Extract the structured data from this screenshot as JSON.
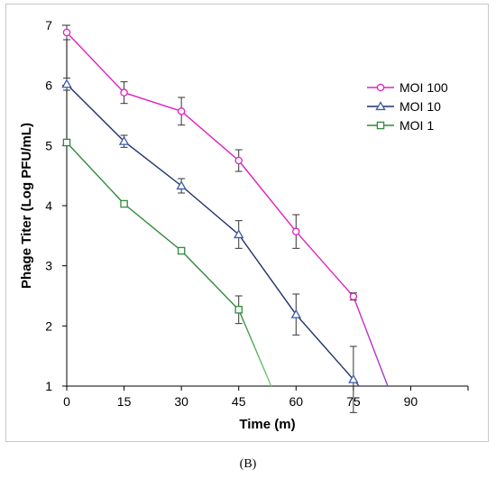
{
  "chart_data": {
    "type": "line",
    "title": "",
    "xlabel": "Time (m)",
    "ylabel": "Phage Titer (Log PFU/mL)",
    "xlim": [
      0,
      105
    ],
    "ylim": [
      1,
      7
    ],
    "xticks": [
      "0",
      "15",
      "30",
      "45",
      "60",
      "75",
      "90"
    ],
    "yticks": [
      "1",
      "2",
      "3",
      "4",
      "5",
      "6",
      "7"
    ],
    "grid": false,
    "legend_position": "top-right",
    "series": [
      {
        "name": "MOI 100",
        "color": "#e020c0",
        "color_end": "#9b3fd0",
        "marker": "circle",
        "points": [
          [
            0,
            6.88
          ],
          [
            15,
            5.88
          ],
          [
            30,
            5.57
          ],
          [
            45,
            4.75
          ],
          [
            60,
            3.57
          ],
          [
            75,
            2.49
          ],
          [
            84,
            1.0
          ]
        ],
        "errors": [
          0.12,
          0.18,
          0.23,
          0.18,
          0.28,
          0.06,
          null
        ]
      },
      {
        "name": "MOI 10",
        "color": "#1f2f6b",
        "color_end": "#4a4ac8",
        "marker": "triangle",
        "points": [
          [
            0,
            6.02
          ],
          [
            15,
            5.07
          ],
          [
            30,
            4.33
          ],
          [
            45,
            3.52
          ],
          [
            60,
            2.19
          ],
          [
            75,
            1.11
          ],
          [
            76.5,
            1.0
          ]
        ],
        "errors": [
          0.1,
          0.1,
          0.12,
          0.23,
          0.34,
          0.55,
          null
        ]
      },
      {
        "name": "MOI 1",
        "color": "#2e8b3a",
        "color_end": "#7ccf7c",
        "marker": "square",
        "points": [
          [
            0,
            5.05
          ],
          [
            15,
            4.03
          ],
          [
            30,
            3.25
          ],
          [
            45,
            2.27
          ],
          [
            53.5,
            1.0
          ]
        ],
        "errors": [
          0.02,
          0.03,
          0.03,
          0.23,
          null
        ]
      }
    ]
  },
  "caption": "(B)"
}
